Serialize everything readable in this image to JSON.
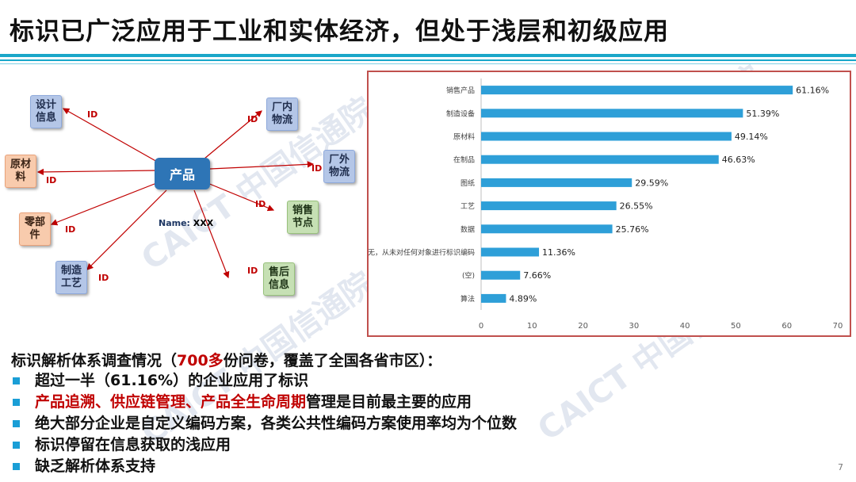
{
  "slide": {
    "title": "标识已广泛应用于工业和实体经济，但处于浅层和初级应用",
    "page_number": "7",
    "colors": {
      "accent": "#1aa7c9",
      "bar": "#2e9fd8",
      "highlight": "#c00000",
      "frame": "#c0504d"
    },
    "watermark_text": "CAICT 中国信通院"
  },
  "diagram": {
    "center": "产品",
    "name_key": "Name:",
    "name_value": "XXX",
    "id_text": "ID",
    "nodes": [
      {
        "key": "design",
        "label": "设计\n信息",
        "color": "blue"
      },
      {
        "key": "raw",
        "label": "原材\n料",
        "color": "orange"
      },
      {
        "key": "part",
        "label": "零部\n件",
        "color": "orange"
      },
      {
        "key": "process",
        "label": "制造\n工艺",
        "color": "blue"
      },
      {
        "key": "inner",
        "label": "厂内\n物流",
        "color": "blue"
      },
      {
        "key": "outer",
        "label": "厂外\n物流",
        "color": "blue"
      },
      {
        "key": "sales",
        "label": "销售\n节点",
        "color": "green"
      },
      {
        "key": "after",
        "label": "售后\n信息",
        "color": "green"
      }
    ]
  },
  "chart_data": {
    "type": "bar",
    "orientation": "horizontal",
    "categories": [
      "销售产品",
      "制造设备",
      "原材料",
      "在制品",
      "图纸",
      "工艺",
      "数据",
      "无，从未对任何对象进行标识编码",
      "(空)",
      "算法"
    ],
    "values": [
      61.16,
      51.39,
      49.14,
      46.63,
      29.59,
      26.55,
      25.76,
      11.36,
      7.66,
      4.89
    ],
    "value_labels": [
      "61.16%",
      "51.39%",
      "49.14%",
      "46.63%",
      "29.59%",
      "26.55%",
      "25.76%",
      "11.36%",
      "7.66%",
      "4.89%"
    ],
    "xlim": [
      0,
      70
    ],
    "xticks": [
      0,
      10,
      20,
      30,
      40,
      50,
      60,
      70
    ],
    "grid": false
  },
  "survey": {
    "prefix": "标识解析体系调查情况（",
    "highlight": "700多",
    "suffix": "份问卷，覆盖了全国各省市区）：",
    "bullets": [
      {
        "red": "",
        "text": "超过一半（61.16%）的企业应用了标识"
      },
      {
        "red": "产品追溯、供应链管理、产品全生命周期",
        "text": "管理是目前最主要的应用"
      },
      {
        "red": "",
        "text": "绝大部分企业是自定义编码方案，各类公共性编码方案使用率均为个位数"
      },
      {
        "red": "",
        "text": "标识停留在信息获取的浅应用"
      },
      {
        "red": "",
        "text": "缺乏解析体系支持"
      }
    ]
  }
}
